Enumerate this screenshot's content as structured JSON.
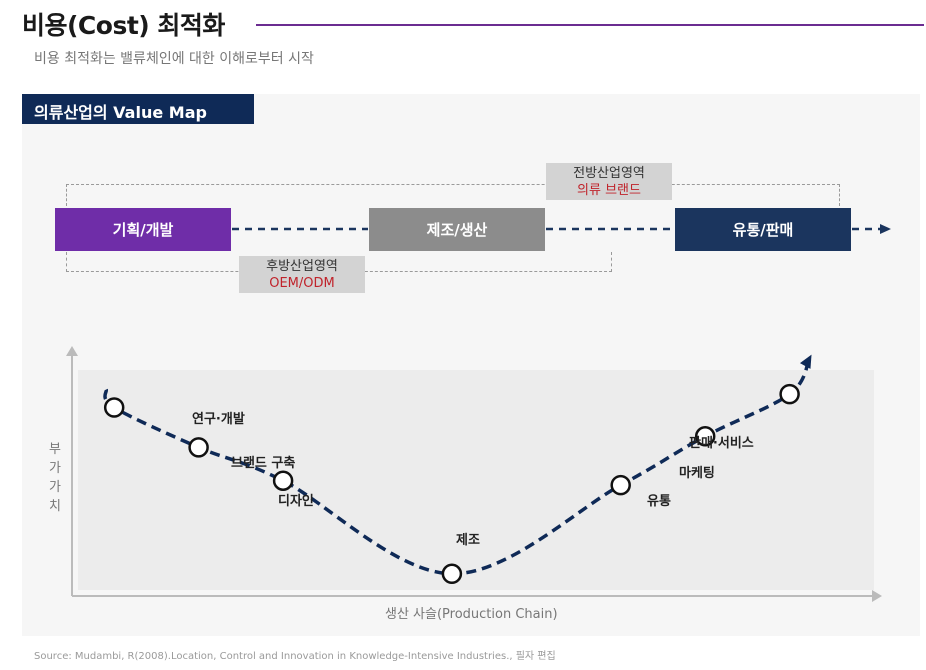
{
  "header": {
    "title": "비용(Cost) 최적화",
    "subtitle": "비용 최적화는 밸류체인에 대한 이해로부터 시작"
  },
  "panel": {
    "label": "의류산업의 Value Map"
  },
  "flow": {
    "stages": [
      {
        "label": "기획/개발"
      },
      {
        "label": "제조/생산"
      },
      {
        "label": "유통/판매"
      }
    ],
    "upstream": {
      "title": "후방산업영역",
      "sub": "OEM/ODM"
    },
    "downstream": {
      "title": "전방산업영역",
      "sub": "의류 브랜드"
    }
  },
  "chart_data": {
    "type": "line",
    "title": "",
    "xlabel": "생산 사슬(Production Chain)",
    "ylabel": "부가가치",
    "points": [
      {
        "label": "연구·개발",
        "x": 1,
        "y": 85
      },
      {
        "label": "브랜드 구축",
        "x": 2,
        "y": 67
      },
      {
        "label": "디자인",
        "x": 3,
        "y": 52
      },
      {
        "label": "제조",
        "x": 5,
        "y": 10
      },
      {
        "label": "유통",
        "x": 7,
        "y": 50
      },
      {
        "label": "마케팅",
        "x": 8,
        "y": 72
      },
      {
        "label": "판매·서비스",
        "x": 9,
        "y": 91
      }
    ],
    "xlim": [
      0.5,
      10
    ],
    "ylim": [
      0,
      110
    ],
    "colors": {
      "curve": "#0f2a57",
      "axis": "#bbbbbb"
    }
  },
  "footer": {
    "source": "Source: Mudambi, R(2008).Location, Control and Innovation in Knowledge-Intensive Industries., 필자 편집"
  }
}
